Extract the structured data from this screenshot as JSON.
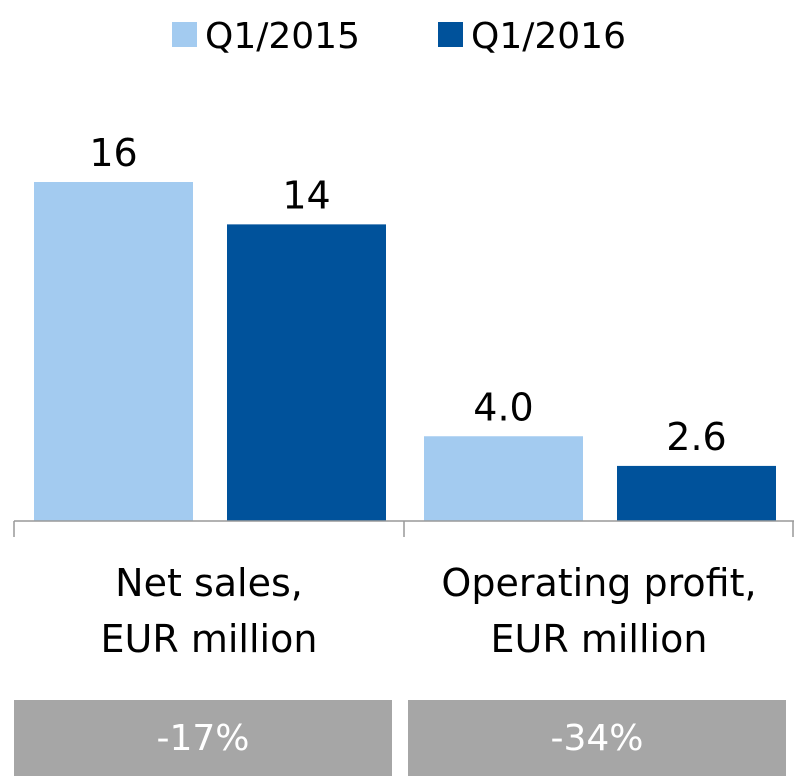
{
  "chart_data": {
    "type": "bar",
    "categories": [
      "Net sales,\nEUR million",
      "Operating profit,\nEUR million"
    ],
    "series": [
      {
        "name": "Q1/2015",
        "color": "#a3cbf0",
        "values": [
          16,
          4.0
        ],
        "value_labels": [
          "16",
          "4.0"
        ]
      },
      {
        "name": "Q1/2016",
        "color": "#00529b",
        "values": [
          14,
          2.6
        ],
        "value_labels": [
          "14",
          "2.6"
        ]
      }
    ],
    "annotations": [
      "-17%",
      "-34%"
    ],
    "legend": "top"
  }
}
